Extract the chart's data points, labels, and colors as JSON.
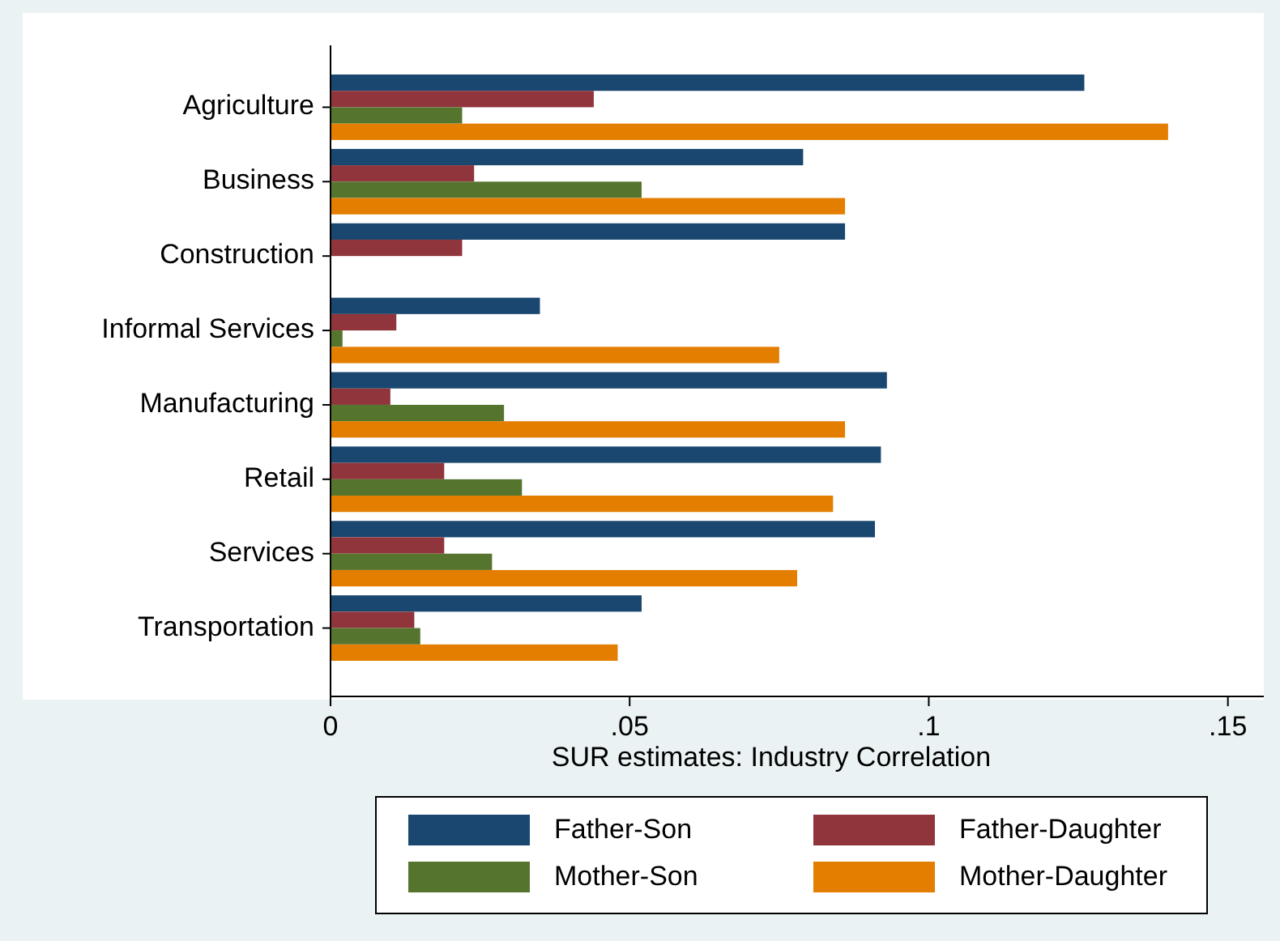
{
  "chart_data": {
    "type": "bar",
    "orientation": "horizontal",
    "xlabel": "SUR estimates: Industry Correlation",
    "categories": [
      "Agriculture",
      "Business",
      "Construction",
      "Informal Services",
      "Manufacturing",
      "Retail",
      "Services",
      "Transportation"
    ],
    "xlim": [
      0,
      0.156
    ],
    "xticks": [
      {
        "value": 0,
        "label": "0"
      },
      {
        "value": 0.05,
        "label": ".05"
      },
      {
        "value": 0.1,
        "label": ".1"
      },
      {
        "value": 0.15,
        "label": ".15"
      }
    ],
    "legend": "bottom",
    "grid": false,
    "series": [
      {
        "name": "Father-Son",
        "color": "#1a476f",
        "values": [
          0.126,
          0.079,
          0.086,
          0.035,
          0.093,
          0.092,
          0.091,
          0.052
        ]
      },
      {
        "name": "Father-Daughter",
        "color": "#90353b",
        "values": [
          0.044,
          0.024,
          0.022,
          0.011,
          0.01,
          0.019,
          0.019,
          0.014
        ]
      },
      {
        "name": "Mother-Son",
        "color": "#55752f",
        "values": [
          0.022,
          0.052,
          null,
          0.002,
          0.029,
          0.032,
          0.027,
          0.015
        ]
      },
      {
        "name": "Mother-Daughter",
        "color": "#e37e00",
        "values": [
          0.14,
          0.086,
          null,
          0.075,
          0.086,
          0.084,
          0.078,
          0.048
        ]
      }
    ]
  }
}
